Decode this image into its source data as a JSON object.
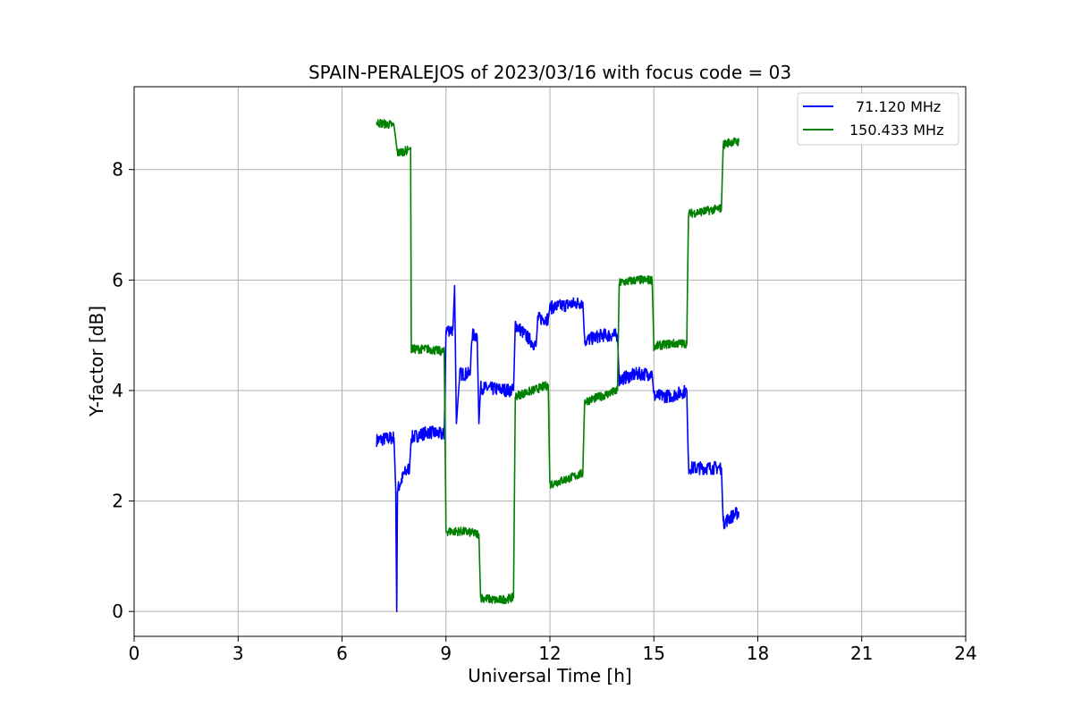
{
  "chart_data": {
    "type": "line",
    "title": "SPAIN-PERALEJOS of 2023/03/16 with focus code = 03",
    "xlabel": "Universal Time [h]",
    "ylabel": "Y-factor [dB]",
    "xlim": [
      0,
      24
    ],
    "ylim": [
      -0.45,
      9.5
    ],
    "xticks": [
      0,
      3,
      6,
      9,
      12,
      15,
      18,
      21,
      24
    ],
    "yticks": [
      0,
      2,
      4,
      6,
      8
    ],
    "grid": true,
    "legend_position": "top-right",
    "series": [
      {
        "name": "71.120 MHz",
        "color": "#0000ff",
        "noise": 0.12,
        "points": [
          [
            7.0,
            3.1
          ],
          [
            7.5,
            3.15
          ],
          [
            7.55,
            2.2
          ],
          [
            7.58,
            0.0
          ],
          [
            7.6,
            2.2
          ],
          [
            7.8,
            2.5
          ],
          [
            7.95,
            2.6
          ],
          [
            8.0,
            3.15
          ],
          [
            8.5,
            3.25
          ],
          [
            8.95,
            3.2
          ],
          [
            9.0,
            5.1
          ],
          [
            9.2,
            5.1
          ],
          [
            9.25,
            5.9
          ],
          [
            9.3,
            3.4
          ],
          [
            9.4,
            4.3
          ],
          [
            9.7,
            4.3
          ],
          [
            9.75,
            5.0
          ],
          [
            9.9,
            5.0
          ],
          [
            9.95,
            3.4
          ],
          [
            10.0,
            4.05
          ],
          [
            10.95,
            4.0
          ],
          [
            11.0,
            5.2
          ],
          [
            11.3,
            5.0
          ],
          [
            11.6,
            4.8
          ],
          [
            11.65,
            5.3
          ],
          [
            11.95,
            5.3
          ],
          [
            12.0,
            5.5
          ],
          [
            12.95,
            5.6
          ],
          [
            13.0,
            4.9
          ],
          [
            13.5,
            5.0
          ],
          [
            13.95,
            5.0
          ],
          [
            14.0,
            4.2
          ],
          [
            14.5,
            4.3
          ],
          [
            14.95,
            4.3
          ],
          [
            15.0,
            3.9
          ],
          [
            15.5,
            3.9
          ],
          [
            15.95,
            4.0
          ],
          [
            16.0,
            2.6
          ],
          [
            16.5,
            2.6
          ],
          [
            16.95,
            2.6
          ],
          [
            17.0,
            1.6
          ],
          [
            17.2,
            1.7
          ],
          [
            17.45,
            1.8
          ]
        ]
      },
      {
        "name": "150.433 MHz",
        "color": "#008000",
        "noise": 0.08,
        "points": [
          [
            7.0,
            8.85
          ],
          [
            7.5,
            8.8
          ],
          [
            7.6,
            8.3
          ],
          [
            7.9,
            8.35
          ],
          [
            7.98,
            8.4
          ],
          [
            8.0,
            4.75
          ],
          [
            8.5,
            4.75
          ],
          [
            8.95,
            4.7
          ],
          [
            9.0,
            1.45
          ],
          [
            9.5,
            1.45
          ],
          [
            9.95,
            1.4
          ],
          [
            10.0,
            0.25
          ],
          [
            10.5,
            0.2
          ],
          [
            10.95,
            0.25
          ],
          [
            11.0,
            3.9
          ],
          [
            11.5,
            4.0
          ],
          [
            11.95,
            4.1
          ],
          [
            12.0,
            2.3
          ],
          [
            12.5,
            2.4
          ],
          [
            12.95,
            2.5
          ],
          [
            13.0,
            3.8
          ],
          [
            13.5,
            3.9
          ],
          [
            13.95,
            4.0
          ],
          [
            14.0,
            5.95
          ],
          [
            14.5,
            6.0
          ],
          [
            14.95,
            6.0
          ],
          [
            15.0,
            4.8
          ],
          [
            15.5,
            4.85
          ],
          [
            15.95,
            4.85
          ],
          [
            16.0,
            7.2
          ],
          [
            16.5,
            7.25
          ],
          [
            16.95,
            7.3
          ],
          [
            17.0,
            8.45
          ],
          [
            17.2,
            8.5
          ],
          [
            17.45,
            8.5
          ]
        ]
      }
    ]
  }
}
